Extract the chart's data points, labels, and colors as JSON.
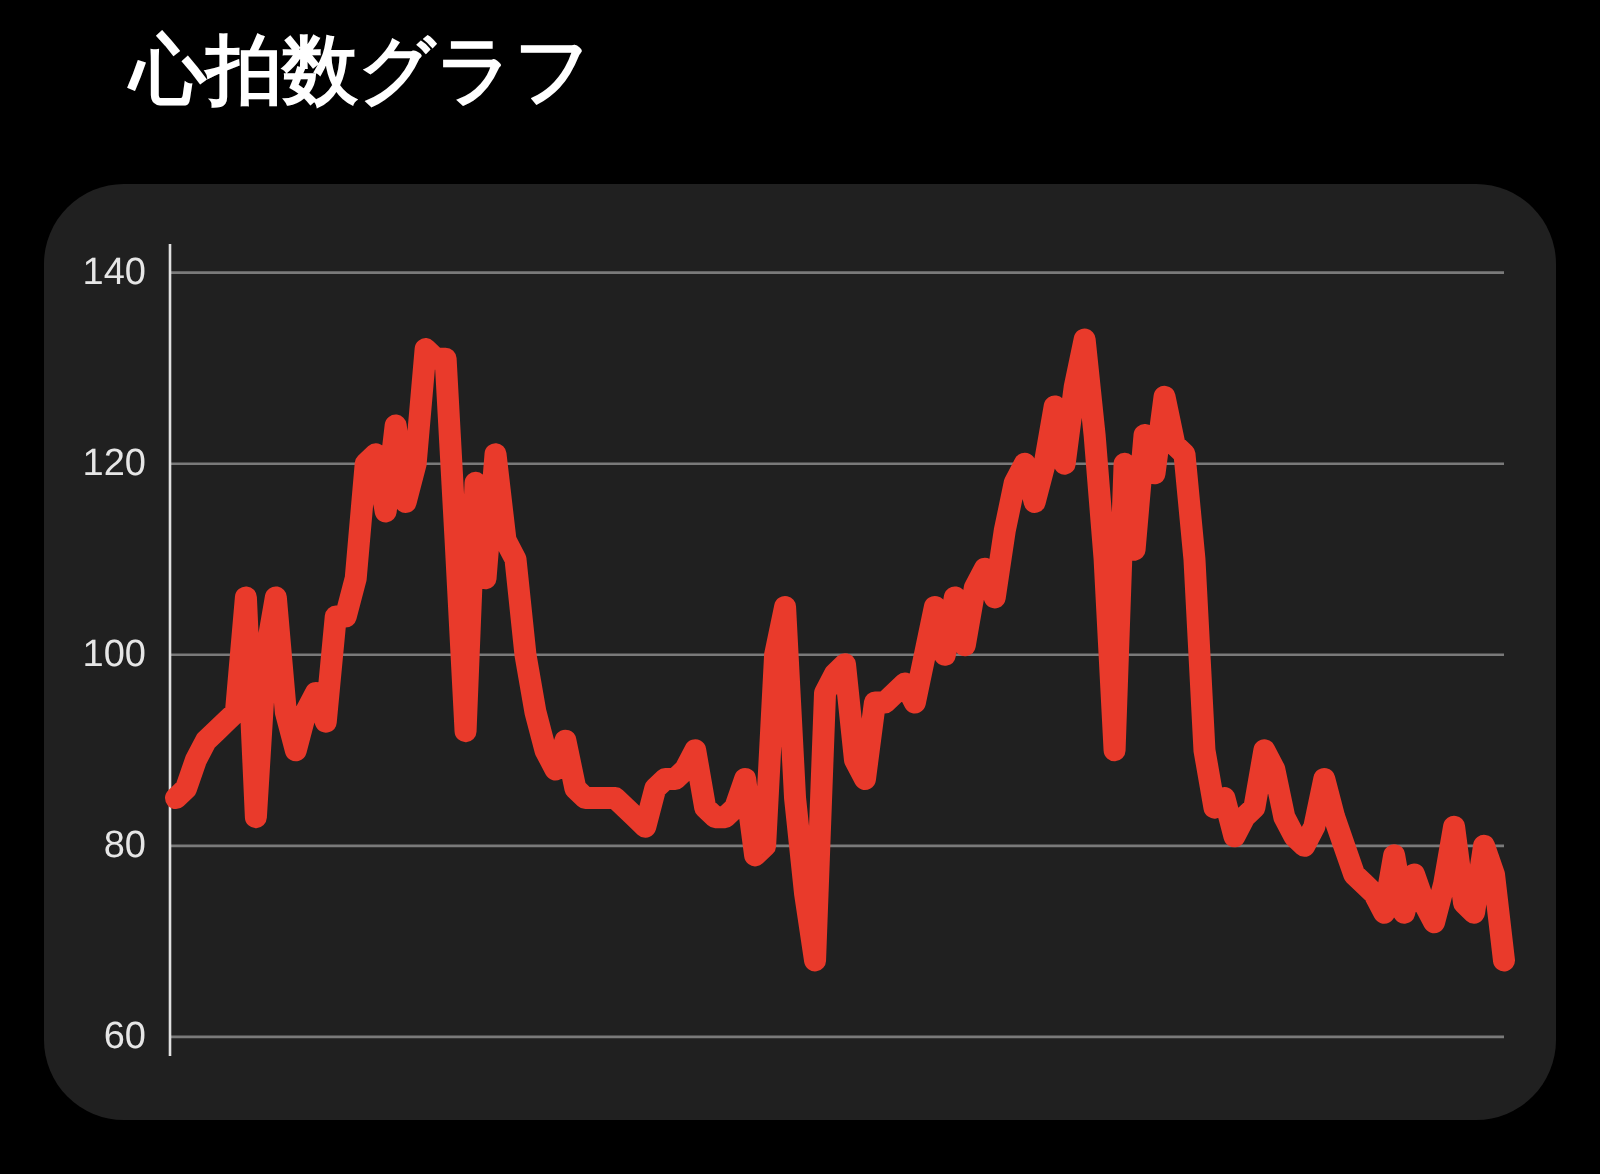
{
  "chart_data": {
    "type": "line",
    "title": "心拍数グラフ",
    "categories": [
      null,
      null,
      null,
      null,
      null,
      null,
      null,
      null,
      null,
      null,
      null,
      null,
      null,
      null,
      null,
      null,
      null,
      null,
      null,
      null,
      null,
      null,
      null,
      null,
      null,
      null,
      null,
      null,
      null,
      null,
      null,
      null,
      null,
      null,
      null,
      null,
      null,
      null,
      null,
      null,
      null,
      null,
      null,
      null,
      null,
      null,
      null,
      null,
      null,
      null,
      null,
      null,
      null,
      null,
      null,
      null,
      null,
      null,
      null,
      null,
      null,
      null,
      null,
      null,
      null,
      null,
      null,
      null,
      null,
      null,
      null,
      null,
      null,
      null,
      null,
      null,
      null,
      null,
      null,
      null,
      null,
      null,
      null,
      null,
      null,
      null,
      null,
      null,
      null,
      null,
      null,
      null,
      null,
      null,
      null,
      null,
      null,
      null,
      null,
      null,
      null,
      null,
      null,
      null,
      null,
      null,
      null,
      null,
      null,
      null,
      null,
      null,
      null,
      null,
      null,
      null,
      null,
      null,
      null,
      null,
      null,
      null,
      null,
      null,
      null,
      null,
      null,
      null,
      null,
      null,
      null,
      null,
      null,
      null
    ],
    "series": [
      {
        "color": "#e93a2b",
        "values": [
          85,
          86,
          89,
          91,
          92,
          93,
          94,
          106,
          83,
          100,
          106,
          94,
          90,
          94,
          96,
          93,
          104,
          104,
          108,
          120,
          121,
          115,
          124,
          116,
          120,
          132,
          131,
          131,
          112,
          92,
          118,
          108,
          121,
          112,
          110,
          100,
          94,
          90,
          88,
          91,
          86,
          85,
          85,
          85,
          85,
          84,
          83,
          82,
          86,
          87,
          87,
          88,
          90,
          84,
          83,
          83,
          84,
          87,
          79,
          80,
          100,
          105,
          85,
          75,
          68,
          96,
          98,
          99,
          89,
          87,
          95,
          95,
          96,
          97,
          95,
          100,
          105,
          100,
          106,
          101,
          107,
          109,
          106,
          113,
          118,
          120,
          116,
          120,
          126,
          120,
          128,
          133,
          123,
          110,
          90,
          120,
          111,
          123,
          119,
          127,
          122,
          121,
          110,
          90,
          84,
          85,
          81,
          83,
          84,
          90,
          88,
          83,
          81,
          80,
          82,
          87,
          83,
          80,
          77,
          76,
          75,
          73,
          79,
          73,
          77,
          74,
          72,
          76,
          82,
          74,
          73,
          80,
          77,
          68
        ]
      }
    ],
    "ylim": [
      58,
      143
    ],
    "yticks": [
      60,
      80,
      100,
      120,
      140
    ],
    "grid": "y",
    "line_style": "solid"
  }
}
